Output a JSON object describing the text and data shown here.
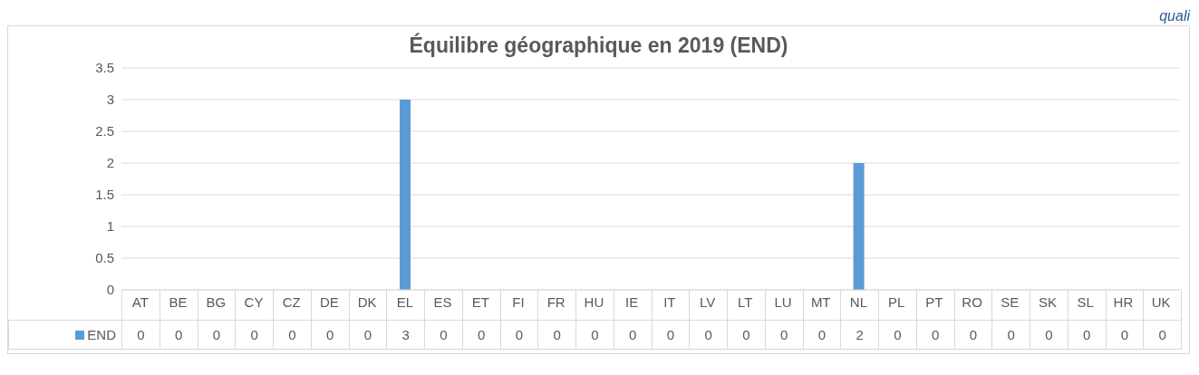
{
  "chart_data": {
    "type": "bar",
    "title": "Équilibre géographique en 2019 (END)",
    "categories": [
      "AT",
      "BE",
      "BG",
      "CY",
      "CZ",
      "DE",
      "DK",
      "EL",
      "ES",
      "ET",
      "FI",
      "FR",
      "HU",
      "IE",
      "IT",
      "LV",
      "LT",
      "LU",
      "MT",
      "NL",
      "PL",
      "PT",
      "RO",
      "SE",
      "SK",
      "SL",
      "HR",
      "UK"
    ],
    "series": [
      {
        "name": "END",
        "color": "#5b9bd5",
        "values": [
          0,
          0,
          0,
          0,
          0,
          0,
          0,
          3,
          0,
          0,
          0,
          0,
          0,
          0,
          0,
          0,
          0,
          0,
          0,
          2,
          0,
          0,
          0,
          0,
          0,
          0,
          0,
          0
        ]
      }
    ],
    "ylim": [
      0,
      3.5
    ],
    "yticks": [
      0,
      0.5,
      1,
      1.5,
      2,
      2.5,
      3,
      3.5
    ],
    "grid": "y",
    "legend": "bottom",
    "data_labels": true,
    "annotations": [
      "quali"
    ]
  }
}
